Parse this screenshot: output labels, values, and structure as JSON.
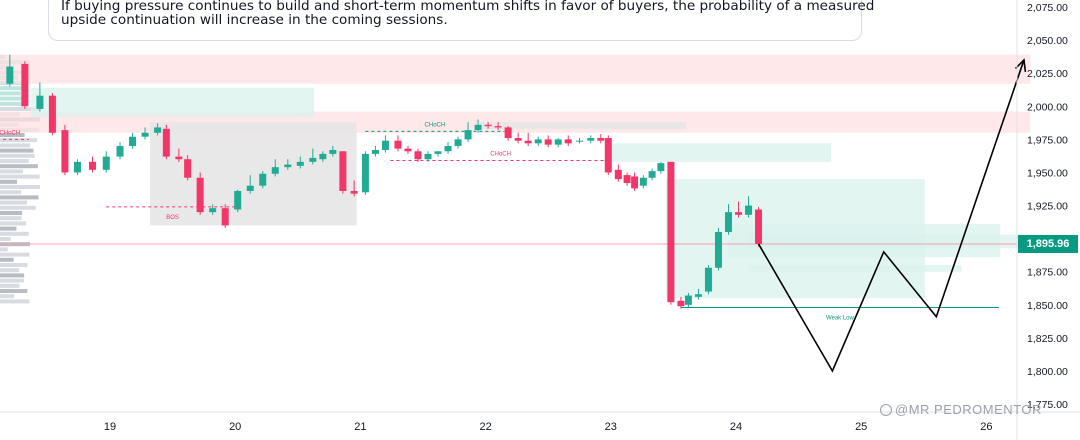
{
  "annotation": {
    "line1": "If buying pressure continues to build and short-term momentum shifts in favor of buyers, the probability of a measured",
    "line2": "upside continuation will increase in the coming sessions."
  },
  "current_price_label": "1,895.96",
  "watermark": "@MR PEDROMENTOR",
  "colors": {
    "up": "#22ab94",
    "down": "#f23669",
    "supply_zone": "#fde0e3",
    "demand_zone": "#d9f2ec",
    "range_box": "#e6e6e6",
    "price_label": "#089981",
    "projection": "#000000"
  },
  "chart_data": {
    "type": "candlestick",
    "y_ticks": [
      "2,075.00",
      "2,050.00",
      "2,025.00",
      "2,000.00",
      "1,975.00",
      "1,950.00",
      "1,925.00",
      "1,900.00",
      "1,875.00",
      "1,850.00",
      "1,825.00",
      "1,800.00",
      "1,775.00"
    ],
    "x_ticks": [
      "19",
      "20",
      "21",
      "22",
      "23",
      "24",
      "25",
      "26"
    ],
    "ylim": [
      1770,
      2080
    ],
    "xlim": [
      18.05,
      26.35
    ],
    "candles": [
      {
        "t": 18.2,
        "o": 2017,
        "h": 2039,
        "c": 2030
      },
      {
        "t": 18.32,
        "o": 2032,
        "h": 2034,
        "c": 2000
      },
      {
        "t": 18.44,
        "o": 1998,
        "h": 2018,
        "c": 2008
      },
      {
        "t": 18.54,
        "o": 2008,
        "h": 2010,
        "c": 1980
      },
      {
        "t": 18.64,
        "o": 1982,
        "h": 1986,
        "c": 1950
      },
      {
        "t": 18.74,
        "o": 1950,
        "h": 1960,
        "c": 1958
      },
      {
        "t": 18.86,
        "o": 1958,
        "h": 1962,
        "c": 1952
      },
      {
        "t": 18.97,
        "o": 1952,
        "h": 1966,
        "c": 1962
      },
      {
        "t": 19.08,
        "o": 1962,
        "h": 1973,
        "c": 1970
      },
      {
        "t": 19.18,
        "o": 1970,
        "h": 1980,
        "c": 1977
      },
      {
        "t": 19.28,
        "o": 1977,
        "h": 1984,
        "c": 1980
      },
      {
        "t": 19.38,
        "o": 1980,
        "h": 1987,
        "c": 1984
      },
      {
        "t": 19.45,
        "o": 1983,
        "h": 1986,
        "c": 1962
      },
      {
        "t": 19.55,
        "o": 1962,
        "h": 1968,
        "c": 1960
      },
      {
        "t": 19.62,
        "o": 1960,
        "h": 1963,
        "c": 1946
      },
      {
        "t": 19.72,
        "o": 1946,
        "h": 1950,
        "c": 1920
      },
      {
        "t": 19.82,
        "o": 1920,
        "h": 1926,
        "c": 1923
      },
      {
        "t": 19.92,
        "o": 1923,
        "h": 1926,
        "c": 1910
      },
      {
        "t": 20.02,
        "o": 1922,
        "h": 1937,
        "c": 1936
      },
      {
        "t": 20.12,
        "o": 1936,
        "h": 1948,
        "c": 1940
      },
      {
        "t": 20.22,
        "o": 1940,
        "h": 1951,
        "c": 1949
      },
      {
        "t": 20.32,
        "o": 1949,
        "h": 1960,
        "c": 1954
      },
      {
        "t": 20.42,
        "o": 1954,
        "h": 1960,
        "c": 1956
      },
      {
        "t": 20.52,
        "o": 1955,
        "h": 1962,
        "c": 1958
      },
      {
        "t": 20.62,
        "o": 1958,
        "h": 1968,
        "c": 1961
      },
      {
        "t": 20.7,
        "o": 1960,
        "h": 1966,
        "c": 1964
      },
      {
        "t": 20.78,
        "o": 1964,
        "h": 1970,
        "c": 1967
      },
      {
        "t": 20.86,
        "o": 1966,
        "h": 1966,
        "c": 1936
      },
      {
        "t": 20.95,
        "o": 1936,
        "h": 1944,
        "c": 1934
      },
      {
        "t": 21.04,
        "o": 1935,
        "h": 1966,
        "c": 1964
      },
      {
        "t": 21.12,
        "o": 1964,
        "h": 1970,
        "c": 1967
      },
      {
        "t": 21.2,
        "o": 1967,
        "h": 1978,
        "c": 1974
      },
      {
        "t": 21.3,
        "o": 1974,
        "h": 1978,
        "c": 1968
      },
      {
        "t": 21.38,
        "o": 1968,
        "h": 1970,
        "c": 1966
      },
      {
        "t": 21.46,
        "o": 1966,
        "h": 1968,
        "c": 1960
      },
      {
        "t": 21.54,
        "o": 1960,
        "h": 1966,
        "c": 1964
      },
      {
        "t": 21.62,
        "o": 1964,
        "h": 1966,
        "c": 1966
      },
      {
        "t": 21.7,
        "o": 1966,
        "h": 1973,
        "c": 1970
      },
      {
        "t": 21.78,
        "o": 1970,
        "h": 1977,
        "c": 1975
      },
      {
        "t": 21.86,
        "o": 1975,
        "h": 1988,
        "c": 1982
      },
      {
        "t": 21.94,
        "o": 1982,
        "h": 1990,
        "c": 1986
      },
      {
        "t": 22.02,
        "o": 1986,
        "h": 1988,
        "c": 1985
      },
      {
        "t": 22.1,
        "o": 1985,
        "h": 1988,
        "c": 1984
      },
      {
        "t": 22.18,
        "o": 1984,
        "h": 1985,
        "c": 1976
      },
      {
        "t": 22.26,
        "o": 1976,
        "h": 1980,
        "c": 1974
      },
      {
        "t": 22.34,
        "o": 1974,
        "h": 1980,
        "c": 1972
      },
      {
        "t": 22.42,
        "o": 1972,
        "h": 1977,
        "c": 1975
      },
      {
        "t": 22.5,
        "o": 1975,
        "h": 1978,
        "c": 1971
      },
      {
        "t": 22.58,
        "o": 1971,
        "h": 1976,
        "c": 1975
      },
      {
        "t": 22.66,
        "o": 1975,
        "h": 1978,
        "c": 1972
      },
      {
        "t": 22.75,
        "o": 1974,
        "h": 1976,
        "c": 1974
      },
      {
        "t": 22.84,
        "o": 1974,
        "h": 1978,
        "c": 1976
      },
      {
        "t": 22.92,
        "o": 1976,
        "h": 1979,
        "c": 1974
      },
      {
        "t": 22.98,
        "o": 1976,
        "h": 1978,
        "c": 1950
      },
      {
        "t": 23.06,
        "o": 1952,
        "h": 1956,
        "c": 1945
      },
      {
        "t": 23.13,
        "o": 1948,
        "h": 1950,
        "c": 1942
      },
      {
        "t": 23.19,
        "o": 1947,
        "h": 1950,
        "c": 1938
      },
      {
        "t": 23.26,
        "o": 1940,
        "h": 1948,
        "c": 1946
      },
      {
        "t": 23.33,
        "o": 1946,
        "h": 1953,
        "c": 1951
      },
      {
        "t": 23.4,
        "o": 1951,
        "h": 1958,
        "c": 1957
      },
      {
        "t": 23.48,
        "o": 1958,
        "h": 1958,
        "c": 1852
      },
      {
        "t": 23.56,
        "o": 1853,
        "h": 1856,
        "c": 1849
      },
      {
        "t": 23.62,
        "o": 1850,
        "h": 1859,
        "c": 1857
      },
      {
        "t": 23.7,
        "o": 1856,
        "h": 1862,
        "c": 1858
      },
      {
        "t": 23.78,
        "o": 1860,
        "h": 1880,
        "c": 1878
      },
      {
        "t": 23.86,
        "o": 1878,
        "h": 1908,
        "c": 1905
      },
      {
        "t": 23.94,
        "o": 1905,
        "h": 1926,
        "c": 1920
      },
      {
        "t": 24.02,
        "o": 1920,
        "h": 1928,
        "c": 1918
      },
      {
        "t": 24.1,
        "o": 1918,
        "h": 1932,
        "c": 1925
      },
      {
        "t": 24.18,
        "o": 1922,
        "h": 1924,
        "c": 1896
      }
    ],
    "zones": [
      {
        "kind": "supply",
        "t0": 18.05,
        "t1": 26.35,
        "y0": 2017,
        "y1": 2039
      },
      {
        "kind": "supply",
        "t0": 18.05,
        "t1": 26.35,
        "y0": 1980,
        "y1": 1996
      },
      {
        "kind": "demand",
        "t0": 18.37,
        "t1": 20.63,
        "y0": 1992,
        "y1": 2014
      },
      {
        "kind": "range",
        "t0": 19.32,
        "t1": 20.97,
        "y0": 1910,
        "y1": 1988
      },
      {
        "kind": "range",
        "t0": 21.95,
        "t1": 23.6,
        "y0": 1983,
        "y1": 1988
      },
      {
        "kind": "demand",
        "t0": 22.98,
        "t1": 24.76,
        "y0": 1958,
        "y1": 1972
      },
      {
        "kind": "demand",
        "t0": 23.44,
        "t1": 25.51,
        "y0": 1855,
        "y1": 1945
      },
      {
        "kind": "demand",
        "t0": 23.94,
        "t1": 26.11,
        "y0": 1886,
        "y1": 1911
      },
      {
        "kind": "demand",
        "t0": 24.1,
        "t1": 26.38,
        "y0": 1893,
        "y1": 1903
      },
      {
        "kind": "demand",
        "t0": 24.1,
        "t1": 25.8,
        "y0": 1875,
        "y1": 1880
      }
    ],
    "levels": [
      {
        "label": "CHoCH",
        "t0": 18.05,
        "t1": 18.35,
        "y": 1975,
        "color": "#f23669",
        "dashed": true
      },
      {
        "label": "BOS",
        "t0": 18.97,
        "t1": 20.03,
        "y": 1924,
        "color": "#f23669",
        "dashed": true
      },
      {
        "label": "CHoCH",
        "t0": 21.04,
        "t1": 22.15,
        "y": 1981,
        "color": "#089981",
        "dashed": true
      },
      {
        "label": "CHoCH",
        "t0": 21.24,
        "t1": 23.0,
        "y": 1959,
        "color": "#f23669",
        "dashed": true
      },
      {
        "label": "Weak Low",
        "t0": 23.56,
        "t1": 26.1,
        "y": 1848,
        "color": "#089981",
        "dashed": false
      }
    ],
    "current_price": 1895.96,
    "projection_path": [
      [
        24.18,
        1896
      ],
      [
        24.77,
        1800
      ],
      [
        25.18,
        1890
      ],
      [
        25.6,
        1841
      ],
      [
        26.3,
        2035
      ]
    ]
  }
}
